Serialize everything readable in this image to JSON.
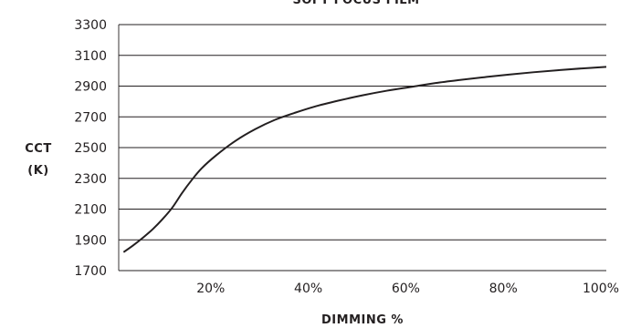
{
  "chart_data": {
    "type": "line",
    "title": "SOFT FOCUS FILM",
    "xlabel": "DIMMING %",
    "ylabel_lines": [
      "CCT",
      "(K)"
    ],
    "xlim": [
      0,
      100
    ],
    "ylim": [
      1700,
      3300
    ],
    "x_ticks": [
      {
        "value": 20,
        "label": "20%"
      },
      {
        "value": 40,
        "label": "40%"
      },
      {
        "value": 60,
        "label": "60%"
      },
      {
        "value": 80,
        "label": "80%"
      },
      {
        "value": 100,
        "label": "100%"
      }
    ],
    "y_ticks": [
      {
        "value": 1700,
        "label": "1700"
      },
      {
        "value": 1900,
        "label": "1900"
      },
      {
        "value": 2100,
        "label": "2100"
      },
      {
        "value": 2300,
        "label": "2300"
      },
      {
        "value": 2500,
        "label": "2500"
      },
      {
        "value": 2700,
        "label": "2700"
      },
      {
        "value": 2900,
        "label": "2900"
      },
      {
        "value": 3100,
        "label": "3100"
      },
      {
        "value": 3300,
        "label": "3300"
      }
    ],
    "grid": "horizontal",
    "series": [
      {
        "x": [
          1,
          3,
          5,
          7,
          9,
          11,
          13,
          15,
          17,
          20,
          24,
          28,
          32,
          36,
          40,
          45,
          50,
          55,
          60,
          65,
          70,
          75,
          80,
          85,
          90,
          95,
          100
        ],
        "y": [
          1820,
          1865,
          1915,
          1970,
          2035,
          2110,
          2205,
          2290,
          2365,
          2450,
          2545,
          2620,
          2680,
          2725,
          2765,
          2805,
          2840,
          2870,
          2895,
          2920,
          2940,
          2958,
          2975,
          2990,
          3003,
          3015,
          3025
        ]
      }
    ]
  }
}
